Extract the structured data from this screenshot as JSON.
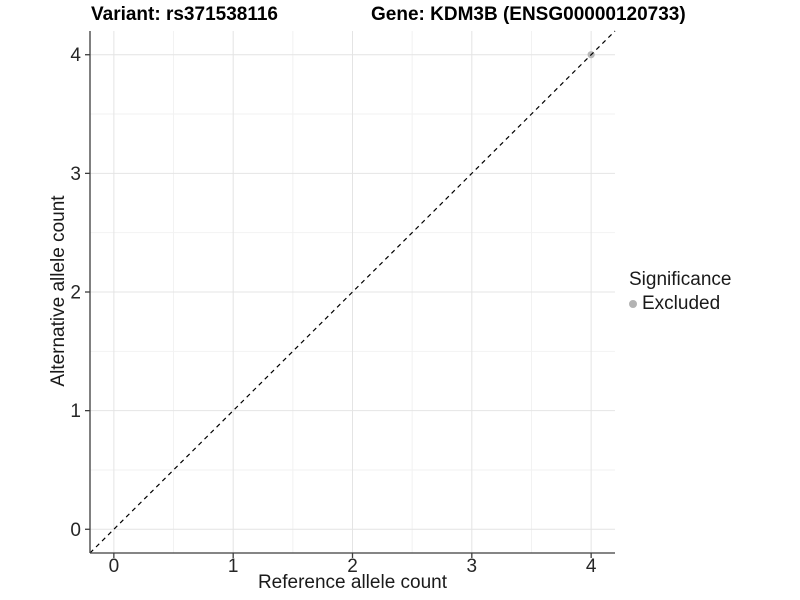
{
  "chart_data": {
    "type": "scatter",
    "titles": {
      "left": "Variant: rs371538116",
      "right": "Gene: KDM3B (ENSG00000120733)"
    },
    "xlabel": "Reference allele count",
    "ylabel": "Alternative allele count",
    "xlim": [
      -0.2,
      4.2
    ],
    "ylim": [
      -0.2,
      4.2
    ],
    "xticks": [
      0,
      1,
      2,
      3,
      4
    ],
    "yticks": [
      0,
      1,
      2,
      3,
      4
    ],
    "minor_ticks": [
      0.5,
      1.5,
      2.5,
      3.5
    ],
    "grid": "major+minor",
    "identity_line": {
      "slope": 1,
      "intercept": 0,
      "style": "dashed",
      "color": "#000000"
    },
    "series": [
      {
        "name": "Excluded",
        "color": "#b9b9b9",
        "points": [
          [
            4,
            4
          ]
        ]
      }
    ],
    "legend": {
      "title": "Significance",
      "position": "right",
      "items": [
        {
          "label": "Excluded",
          "color": "#b3b3b3"
        }
      ]
    }
  },
  "colors": {
    "axis_line": "#3c3c3c",
    "tick_label": "#262626",
    "major_grid": "#e4e4e4",
    "minor_grid": "#f2f2f2",
    "background": "#ffffff"
  }
}
